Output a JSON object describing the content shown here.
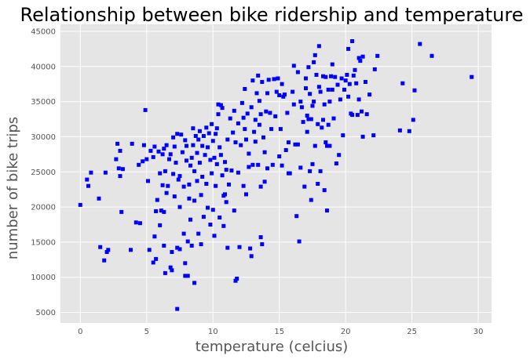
{
  "chart_data": {
    "type": "scatter",
    "title": "Relationship between bike ridership and temperature",
    "xlabel": "temperature (celcius)",
    "ylabel": "number of bike trips",
    "xlim": [
      -1.5,
      31
    ],
    "ylim": [
      3500,
      46000
    ],
    "xticks": [
      0,
      5,
      10,
      15,
      20,
      25,
      30
    ],
    "yticks": [
      5000,
      10000,
      15000,
      20000,
      25000,
      30000,
      35000,
      40000,
      45000
    ],
    "grid": true,
    "marker_color": "#0000ff",
    "background_color": "#e5e5e5",
    "grid_color": "#ffffff",
    "points": [
      [
        0.0,
        20300
      ],
      [
        0.5,
        23900
      ],
      [
        0.6,
        23000
      ],
      [
        0.8,
        24900
      ],
      [
        1.4,
        21200
      ],
      [
        1.5,
        14300
      ],
      [
        1.8,
        12400
      ],
      [
        1.9,
        24900
      ],
      [
        2.0,
        13600
      ],
      [
        2.1,
        13900
      ],
      [
        2.7,
        26800
      ],
      [
        2.8,
        29000
      ],
      [
        2.9,
        25500
      ],
      [
        3.0,
        24400
      ],
      [
        3.0,
        28000
      ],
      [
        3.1,
        19300
      ],
      [
        3.2,
        25400
      ],
      [
        3.8,
        13900
      ],
      [
        3.9,
        29000
      ],
      [
        4.2,
        17800
      ],
      [
        4.4,
        26000
      ],
      [
        4.5,
        17700
      ],
      [
        4.7,
        26500
      ],
      [
        4.8,
        28800
      ],
      [
        4.9,
        33800
      ],
      [
        5.0,
        26800
      ],
      [
        5.2,
        13900
      ],
      [
        5.1,
        23700
      ],
      [
        5.3,
        28000
      ],
      [
        5.5,
        27100
      ],
      [
        5.5,
        12100
      ],
      [
        5.6,
        28600
      ],
      [
        5.6,
        15800
      ],
      [
        5.7,
        12600
      ],
      [
        5.7,
        19400
      ],
      [
        5.8,
        21000
      ],
      [
        5.9,
        27900
      ],
      [
        6.0,
        17400
      ],
      [
        6.0,
        24800
      ],
      [
        6.1,
        19500
      ],
      [
        6.2,
        23100
      ],
      [
        6.2,
        27500
      ],
      [
        6.3,
        28300
      ],
      [
        6.3,
        14500
      ],
      [
        6.3,
        19300
      ],
      [
        6.4,
        25100
      ],
      [
        6.4,
        10600
      ],
      [
        6.5,
        28800
      ],
      [
        6.5,
        22000
      ],
      [
        6.6,
        23000
      ],
      [
        6.7,
        26800
      ],
      [
        6.8,
        27500
      ],
      [
        6.8,
        11400
      ],
      [
        6.9,
        13600
      ],
      [
        6.9,
        11000
      ],
      [
        7.0,
        29900
      ],
      [
        7.0,
        24700
      ],
      [
        7.1,
        28600
      ],
      [
        7.1,
        21500
      ],
      [
        7.2,
        26300
      ],
      [
        7.3,
        30400
      ],
      [
        7.3,
        14200
      ],
      [
        7.3,
        5500
      ],
      [
        7.4,
        23900
      ],
      [
        7.5,
        20000
      ],
      [
        7.5,
        24400
      ],
      [
        7.5,
        14000
      ],
      [
        7.6,
        30300
      ],
      [
        7.7,
        27800
      ],
      [
        7.8,
        22900
      ],
      [
        7.8,
        16200
      ],
      [
        7.9,
        29500
      ],
      [
        7.9,
        12000
      ],
      [
        7.9,
        10200
      ],
      [
        8.0,
        28700
      ],
      [
        8.0,
        26600
      ],
      [
        8.1,
        15100
      ],
      [
        8.1,
        10200
      ],
      [
        8.2,
        23200
      ],
      [
        8.2,
        21200
      ],
      [
        8.3,
        25900
      ],
      [
        8.3,
        18200
      ],
      [
        8.4,
        27000
      ],
      [
        8.4,
        14500
      ],
      [
        8.5,
        31200
      ],
      [
        8.5,
        28800
      ],
      [
        8.6,
        25100
      ],
      [
        8.6,
        20900
      ],
      [
        8.6,
        9200
      ],
      [
        8.7,
        30100
      ],
      [
        8.8,
        27700
      ],
      [
        8.8,
        23700
      ],
      [
        8.9,
        29600
      ],
      [
        8.9,
        16200
      ],
      [
        9.0,
        30800
      ],
      [
        9.0,
        26300
      ],
      [
        9.1,
        21700
      ],
      [
        9.1,
        14700
      ],
      [
        9.2,
        28700
      ],
      [
        9.2,
        24300
      ],
      [
        9.3,
        30100
      ],
      [
        9.3,
        18600
      ],
      [
        9.4,
        27400
      ],
      [
        9.5,
        31300
      ],
      [
        9.5,
        23300
      ],
      [
        9.6,
        28500
      ],
      [
        9.6,
        19900
      ],
      [
        9.7,
        30500
      ],
      [
        9.8,
        26700
      ],
      [
        9.8,
        17500
      ],
      [
        9.9,
        31800
      ],
      [
        9.9,
        24800
      ],
      [
        10.0,
        29400
      ],
      [
        10.0,
        19600
      ],
      [
        10.1,
        27000
      ],
      [
        10.1,
        15900
      ],
      [
        10.2,
        30400
      ],
      [
        10.2,
        23000
      ],
      [
        10.3,
        26100
      ],
      [
        10.3,
        31200
      ],
      [
        10.4,
        34600
      ],
      [
        10.4,
        33200
      ],
      [
        10.5,
        28500
      ],
      [
        10.5,
        18500
      ],
      [
        10.6,
        34500
      ],
      [
        10.6,
        27400
      ],
      [
        10.7,
        24500
      ],
      [
        10.7,
        34100
      ],
      [
        10.8,
        21600
      ],
      [
        10.8,
        17300
      ],
      [
        10.9,
        26400
      ],
      [
        10.9,
        21800
      ],
      [
        11.0,
        25300
      ],
      [
        11.0,
        20700
      ],
      [
        11.1,
        29600
      ],
      [
        11.1,
        14200
      ],
      [
        11.2,
        23200
      ],
      [
        11.3,
        32600
      ],
      [
        11.4,
        25200
      ],
      [
        11.5,
        30600
      ],
      [
        11.6,
        33700
      ],
      [
        11.6,
        19500
      ],
      [
        11.7,
        29200
      ],
      [
        11.7,
        9500
      ],
      [
        11.8,
        9800
      ],
      [
        11.9,
        31900
      ],
      [
        11.9,
        24900
      ],
      [
        12.0,
        14300
      ],
      [
        12.1,
        28800
      ],
      [
        12.2,
        34800
      ],
      [
        12.3,
        32700
      ],
      [
        12.3,
        23000
      ],
      [
        12.4,
        31100
      ],
      [
        12.4,
        36800
      ],
      [
        12.5,
        29600
      ],
      [
        12.5,
        21800
      ],
      [
        12.6,
        33300
      ],
      [
        12.7,
        27600
      ],
      [
        12.7,
        25700
      ],
      [
        12.8,
        14100
      ],
      [
        12.9,
        34200
      ],
      [
        12.9,
        13000
      ],
      [
        13.0,
        38000
      ],
      [
        13.0,
        26000
      ],
      [
        13.1,
        30700
      ],
      [
        13.2,
        32400
      ],
      [
        13.2,
        29300
      ],
      [
        13.3,
        36200
      ],
      [
        13.4,
        38700
      ],
      [
        13.4,
        26000
      ],
      [
        13.5,
        35100
      ],
      [
        13.5,
        31700
      ],
      [
        13.6,
        33200
      ],
      [
        13.6,
        22900
      ],
      [
        13.6,
        15700
      ],
      [
        13.7,
        37800
      ],
      [
        13.7,
        14700
      ],
      [
        13.8,
        29900
      ],
      [
        13.9,
        27800
      ],
      [
        13.9,
        23600
      ],
      [
        14.0,
        33600
      ],
      [
        14.1,
        36200
      ],
      [
        14.1,
        25500
      ],
      [
        14.2,
        38100
      ],
      [
        14.3,
        33400
      ],
      [
        14.4,
        31100
      ],
      [
        14.5,
        26000
      ],
      [
        14.6,
        38200
      ],
      [
        14.7,
        32900
      ],
      [
        14.8,
        36400
      ],
      [
        14.9,
        38300
      ],
      [
        15.0,
        35900
      ],
      [
        15.0,
        27200
      ],
      [
        15.1,
        31100
      ],
      [
        15.2,
        25900
      ],
      [
        15.2,
        37500
      ],
      [
        15.3,
        35700
      ],
      [
        15.4,
        36000
      ],
      [
        15.5,
        28100
      ],
      [
        15.6,
        33400
      ],
      [
        15.7,
        24800
      ],
      [
        15.7,
        29200
      ],
      [
        15.8,
        24800
      ],
      [
        16.0,
        36400
      ],
      [
        16.1,
        34600
      ],
      [
        16.1,
        40100
      ],
      [
        16.2,
        28900
      ],
      [
        16.3,
        18700
      ],
      [
        16.4,
        28900
      ],
      [
        16.4,
        39200
      ],
      [
        16.5,
        15100
      ],
      [
        16.6,
        35000
      ],
      [
        16.6,
        25600
      ],
      [
        16.7,
        34200
      ],
      [
        16.8,
        32100
      ],
      [
        16.9,
        22900
      ],
      [
        17.0,
        36900
      ],
      [
        17.0,
        38300
      ],
      [
        17.1,
        33000
      ],
      [
        17.1,
        30700
      ],
      [
        17.2,
        39900
      ],
      [
        17.2,
        32500
      ],
      [
        17.3,
        36100
      ],
      [
        17.3,
        25100
      ],
      [
        17.4,
        32500
      ],
      [
        17.4,
        21000
      ],
      [
        17.5,
        34400
      ],
      [
        17.5,
        26100
      ],
      [
        17.6,
        40600
      ],
      [
        17.6,
        35000
      ],
      [
        17.7,
        41600
      ],
      [
        17.7,
        28700
      ],
      [
        17.8,
        38800
      ],
      [
        17.9,
        31800
      ],
      [
        17.9,
        23300
      ],
      [
        18.0,
        42900
      ],
      [
        18.0,
        37100
      ],
      [
        18.1,
        36400
      ],
      [
        18.1,
        25100
      ],
      [
        18.2,
        31300
      ],
      [
        18.3,
        38600
      ],
      [
        18.3,
        32400
      ],
      [
        18.4,
        34600
      ],
      [
        18.4,
        22400
      ],
      [
        18.5,
        38500
      ],
      [
        18.5,
        29200
      ],
      [
        18.6,
        28700
      ],
      [
        18.6,
        19500
      ],
      [
        18.7,
        36700
      ],
      [
        18.7,
        31700
      ],
      [
        18.8,
        35000
      ],
      [
        18.8,
        28700
      ],
      [
        18.9,
        38600
      ],
      [
        19.0,
        40300
      ],
      [
        19.0,
        36700
      ],
      [
        19.1,
        32600
      ],
      [
        19.2,
        38500
      ],
      [
        19.3,
        26200
      ],
      [
        19.4,
        37400
      ],
      [
        19.5,
        27400
      ],
      [
        19.6,
        35300
      ],
      [
        19.7,
        38300
      ],
      [
        19.8,
        30200
      ],
      [
        19.9,
        36700
      ],
      [
        20.0,
        38000
      ],
      [
        20.1,
        38800
      ],
      [
        20.2,
        42500
      ],
      [
        20.2,
        35700
      ],
      [
        20.3,
        37500
      ],
      [
        20.4,
        33300
      ],
      [
        20.5,
        43600
      ],
      [
        20.5,
        33100
      ],
      [
        20.6,
        38700
      ],
      [
        20.7,
        39500
      ],
      [
        20.8,
        37600
      ],
      [
        20.9,
        33100
      ],
      [
        21.0,
        41200
      ],
      [
        21.0,
        35300
      ],
      [
        21.1,
        40800
      ],
      [
        21.2,
        33600
      ],
      [
        21.3,
        41400
      ],
      [
        21.3,
        30000
      ],
      [
        21.5,
        37800
      ],
      [
        21.6,
        33200
      ],
      [
        21.8,
        36000
      ],
      [
        22.1,
        30200
      ],
      [
        22.2,
        39600
      ],
      [
        22.4,
        41500
      ],
      [
        24.1,
        30900
      ],
      [
        24.3,
        37600
      ],
      [
        24.8,
        30800
      ],
      [
        25.1,
        32400
      ],
      [
        25.2,
        36600
      ],
      [
        25.6,
        43200
      ],
      [
        26.5,
        41500
      ],
      [
        29.5,
        38500
      ]
    ]
  }
}
